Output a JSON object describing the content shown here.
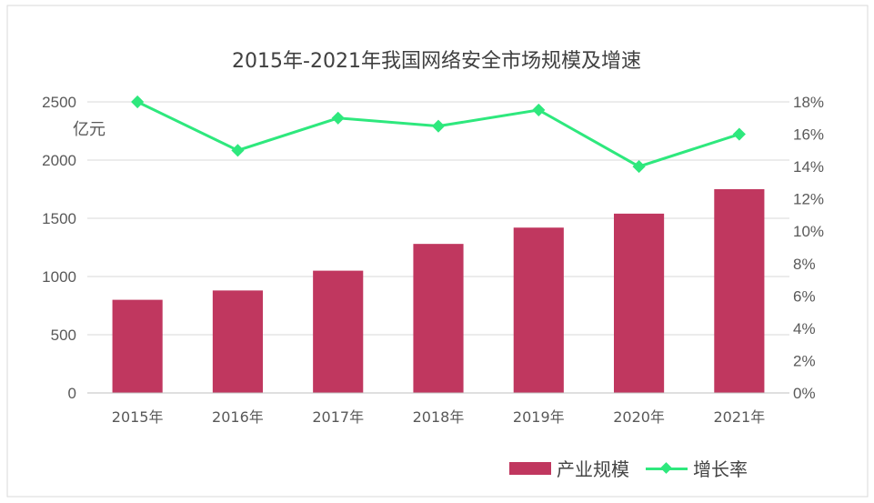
{
  "chart_data": {
    "type": "bar",
    "title": "2015年-2021年我国网络安全市场规模及增速",
    "y_left_unit": "亿元",
    "categories": [
      "2015年",
      "2016年",
      "2017年",
      "2018年",
      "2019年",
      "2020年",
      "2021年"
    ],
    "series": [
      {
        "name": "产业规模",
        "type": "bar",
        "axis": "left",
        "values": [
          800,
          880,
          1050,
          1280,
          1420,
          1540,
          1750
        ]
      },
      {
        "name": "增长率",
        "type": "line",
        "axis": "right",
        "values": [
          18.0,
          15.0,
          17.0,
          16.5,
          17.5,
          14.0,
          16.0
        ]
      }
    ],
    "y_left_ticks": [
      "0",
      "500",
      "1000",
      "1500",
      "2000",
      "2500"
    ],
    "y_left_range": [
      0,
      2500
    ],
    "y_right_ticks": [
      "0%",
      "2%",
      "4%",
      "6%",
      "8%",
      "10%",
      "12%",
      "14%",
      "16%",
      "18%"
    ],
    "y_right_range": [
      0,
      18
    ],
    "grid": true,
    "legend_position": "bottom-right",
    "colors": {
      "bar": "#c0375f",
      "line": "#2ee87d",
      "line_marker": "#2ee87d",
      "axis_text": "#595959",
      "grid": "#d9d9d9"
    }
  }
}
